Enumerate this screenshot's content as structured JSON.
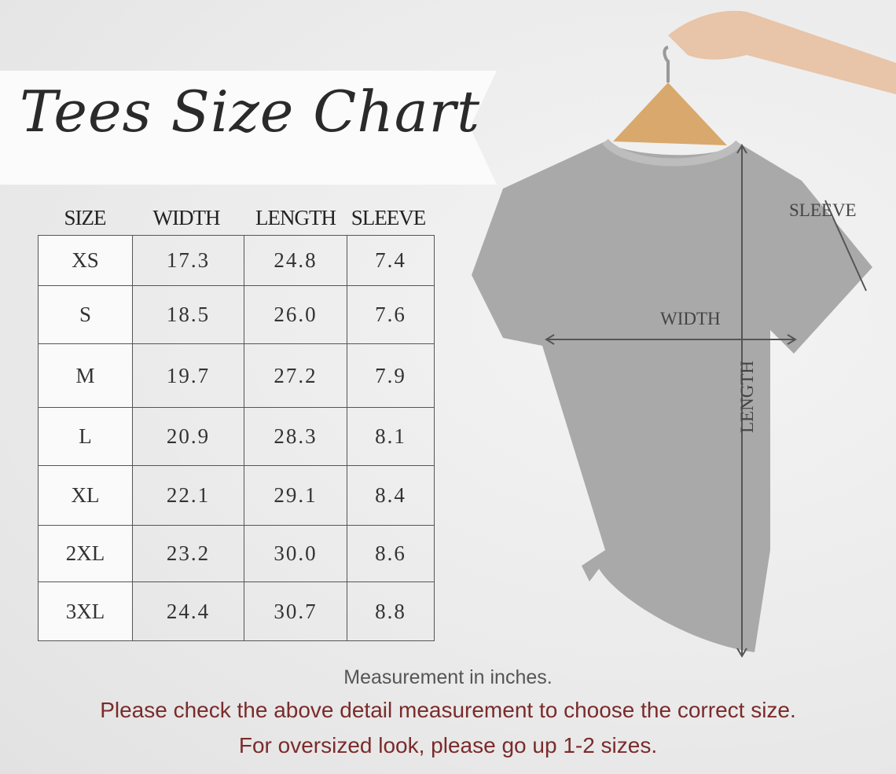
{
  "title": "Tees Size Chart",
  "table": {
    "headers": [
      "SIZE",
      "WIDTH",
      "LENGTH",
      "SLEEVE"
    ],
    "rows": [
      [
        "XS",
        "17.3",
        "24.8",
        "7.4"
      ],
      [
        "S",
        "18.5",
        "26.0",
        "7.6"
      ],
      [
        "M",
        "19.7",
        "27.2",
        "7.9"
      ],
      [
        "L",
        "20.9",
        "28.3",
        "8.1"
      ],
      [
        "XL",
        "22.1",
        "29.1",
        "8.4"
      ],
      [
        "2XL",
        "23.2",
        "30.0",
        "8.6"
      ],
      [
        "3XL",
        "24.4",
        "30.7",
        "8.8"
      ]
    ]
  },
  "diagram": {
    "sleeve": "SLEEVE",
    "width": "WIDTH",
    "length": "LENGTH"
  },
  "notes": {
    "unit": "Measurement in inches.",
    "check": "Please check the above detail measurement to choose the correct size.",
    "oversized": "For oversized look,  please go up 1-2 sizes."
  },
  "colors": {
    "note_red": "#7b2b2b",
    "note_gray": "#555555",
    "shirt": "#a9a9a9"
  }
}
